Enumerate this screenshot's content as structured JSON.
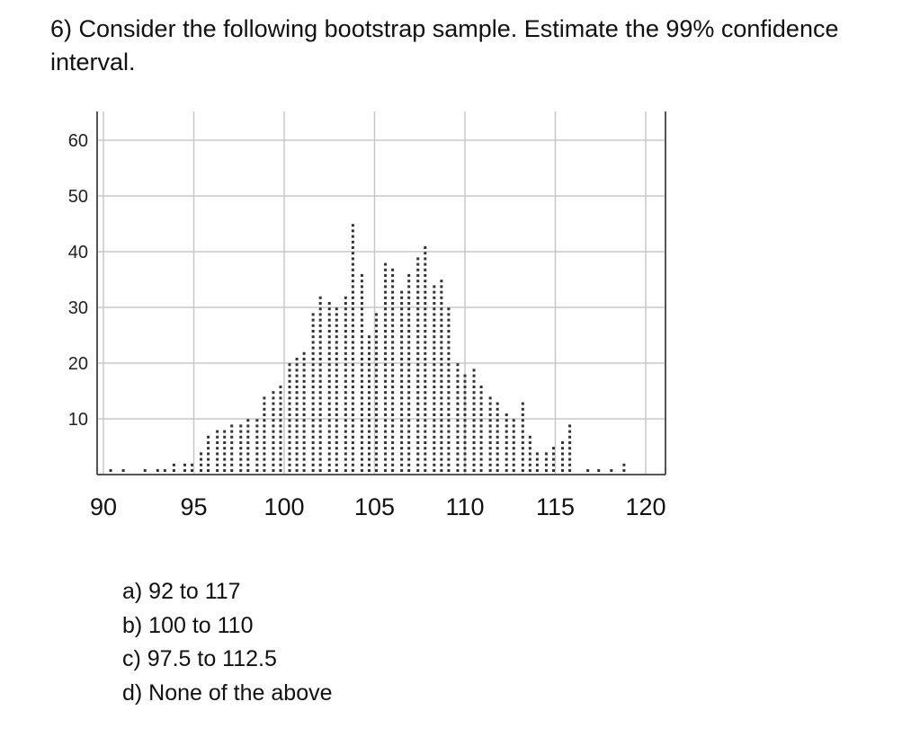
{
  "question": {
    "text": "6) Consider the following bootstrap sample.  Estimate the 99% confidence interval."
  },
  "chart_data": {
    "type": "scatter",
    "subtype": "dot plot",
    "title": "",
    "xlabel": "",
    "ylabel": "",
    "xlim": [
      89.5,
      120.5
    ],
    "ylim": [
      0,
      62
    ],
    "x_ticks": [
      90,
      95,
      100,
      105,
      110,
      115,
      120
    ],
    "x_tick_labels": [
      "90",
      "95",
      "100",
      "105",
      "110",
      "115",
      "120"
    ],
    "y_ticks": [
      10,
      20,
      30,
      40,
      50,
      60
    ],
    "y_tick_labels": [
      "10",
      "20",
      "30",
      "40",
      "50",
      "60"
    ],
    "grid": true,
    "legend": "none",
    "dot_color": "#333333",
    "grid_color": "#c8c8c8",
    "x": [
      90.4,
      91.1,
      92.3,
      93.0,
      93.4,
      93.9,
      94.5,
      94.9,
      95.4,
      95.8,
      96.3,
      96.7,
      97.1,
      97.6,
      98.0,
      98.5,
      98.9,
      99.4,
      99.8,
      100.3,
      100.7,
      101.1,
      101.6,
      102.0,
      102.5,
      102.9,
      103.4,
      103.8,
      104.3,
      104.7,
      105.1,
      105.6,
      106.0,
      106.5,
      106.9,
      107.4,
      107.8,
      108.3,
      108.7,
      109.1,
      109.6,
      110.0,
      110.5,
      110.9,
      111.4,
      111.8,
      112.3,
      112.7,
      113.2,
      113.6,
      114.0,
      114.5,
      114.9,
      115.4,
      115.8,
      116.8,
      117.4,
      118.1,
      118.8
    ],
    "y": [
      1,
      1,
      1,
      1,
      1,
      2,
      2,
      2,
      4,
      7,
      8,
      8,
      9,
      9,
      10,
      10,
      14,
      15,
      16,
      20,
      21,
      22,
      29,
      32,
      31,
      30,
      32,
      45,
      36,
      25,
      29,
      38,
      37,
      33,
      36,
      39,
      41,
      34,
      35,
      30,
      20,
      18,
      19,
      16,
      14,
      13,
      11,
      10,
      13,
      7,
      4,
      4,
      5,
      6,
      9,
      1,
      1,
      1,
      2
    ]
  },
  "choices": [
    {
      "label": "a)  92 to 117"
    },
    {
      "label": "b)  100 to 110"
    },
    {
      "label": "c)  97.5 to 112.5"
    },
    {
      "label": "d) None of the above"
    }
  ]
}
